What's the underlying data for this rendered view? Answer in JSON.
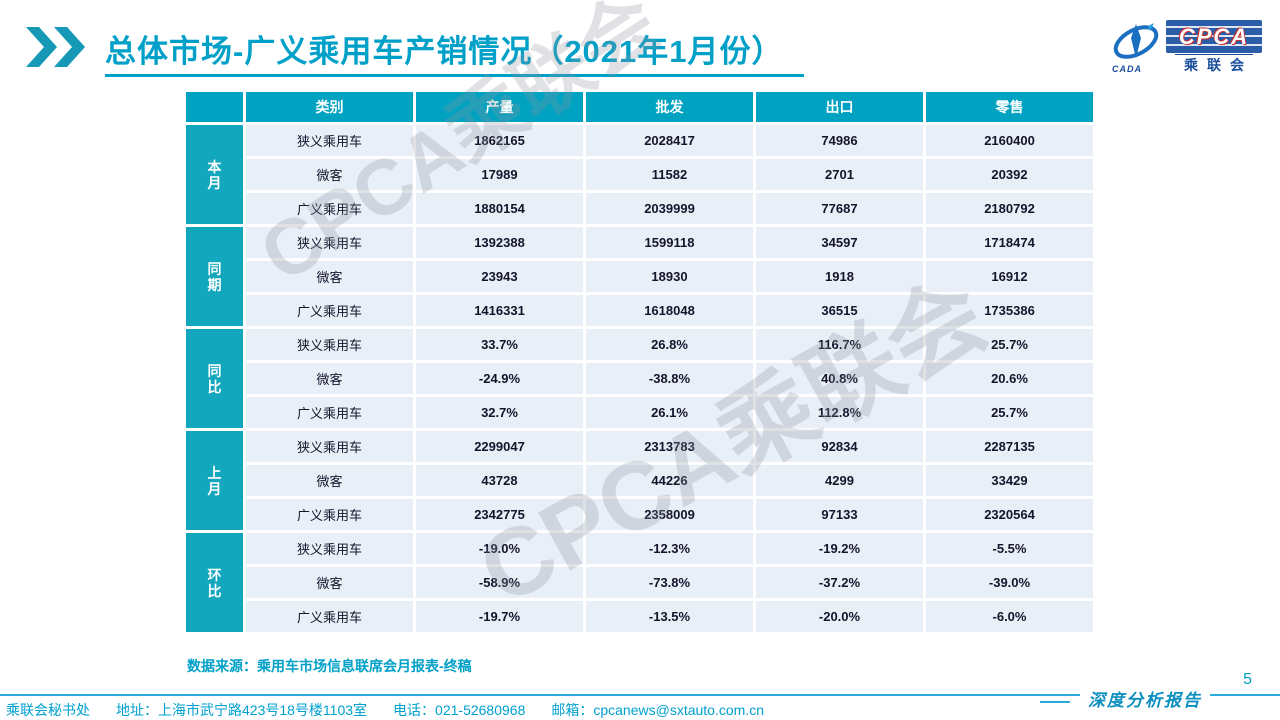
{
  "title": "总体市场-广义乘用车产销情况（2021年1月份）",
  "logo": {
    "cpca": "CPCA",
    "name_cn": "乘联会",
    "cada": "CADA"
  },
  "watermark_text": "CPCA乘联会",
  "table": {
    "columns": [
      "类别",
      "产量",
      "批发",
      "出口",
      "零售"
    ],
    "groups": [
      {
        "label": "本月",
        "rows": [
          {
            "category": "狭义乘用车",
            "values": [
              "1862165",
              "2028417",
              "74986",
              "2160400"
            ]
          },
          {
            "category": "微客",
            "values": [
              "17989",
              "11582",
              "2701",
              "20392"
            ]
          },
          {
            "category": "广义乘用车",
            "values": [
              "1880154",
              "2039999",
              "77687",
              "2180792"
            ]
          }
        ]
      },
      {
        "label": "同期",
        "rows": [
          {
            "category": "狭义乘用车",
            "values": [
              "1392388",
              "1599118",
              "34597",
              "1718474"
            ]
          },
          {
            "category": "微客",
            "values": [
              "23943",
              "18930",
              "1918",
              "16912"
            ]
          },
          {
            "category": "广义乘用车",
            "values": [
              "1416331",
              "1618048",
              "36515",
              "1735386"
            ]
          }
        ]
      },
      {
        "label": "同比",
        "rows": [
          {
            "category": "狭义乘用车",
            "values": [
              "33.7%",
              "26.8%",
              "116.7%",
              "25.7%"
            ]
          },
          {
            "category": "微客",
            "values": [
              "-24.9%",
              "-38.8%",
              "40.8%",
              "20.6%"
            ]
          },
          {
            "category": "广义乘用车",
            "values": [
              "32.7%",
              "26.1%",
              "112.8%",
              "25.7%"
            ]
          }
        ]
      },
      {
        "label": "上月",
        "rows": [
          {
            "category": "狭义乘用车",
            "values": [
              "2299047",
              "2313783",
              "92834",
              "2287135"
            ]
          },
          {
            "category": "微客",
            "values": [
              "43728",
              "44226",
              "4299",
              "33429"
            ]
          },
          {
            "category": "广义乘用车",
            "values": [
              "2342775",
              "2358009",
              "97133",
              "2320564"
            ]
          }
        ]
      },
      {
        "label": "环比",
        "rows": [
          {
            "category": "狭义乘用车",
            "values": [
              "-19.0%",
              "-12.3%",
              "-19.2%",
              "-5.5%"
            ]
          },
          {
            "category": "微客",
            "values": [
              "-58.9%",
              "-73.8%",
              "-37.2%",
              "-39.0%"
            ]
          },
          {
            "category": "广义乘用车",
            "values": [
              "-19.7%",
              "-13.5%",
              "-20.0%",
              "-6.0%"
            ]
          }
        ]
      }
    ]
  },
  "source_note": "数据来源：乘用车市场信息联席会月报表-终稿",
  "footer": {
    "secretariat": "乘联会秘书处",
    "address": "地址：上海市武宁路423号18号楼1103室",
    "phone": "电话：021-52680968",
    "email": "邮箱：cpcanews@sxtauto.com.cn",
    "report_label": "深度分析报告",
    "page_number": "5"
  },
  "colors": {
    "accent": "#00a0c8",
    "table_header_bg": "#00a2c2",
    "group_cell_bg": "#13a7bd",
    "cell_bg": "#e9eff7"
  }
}
